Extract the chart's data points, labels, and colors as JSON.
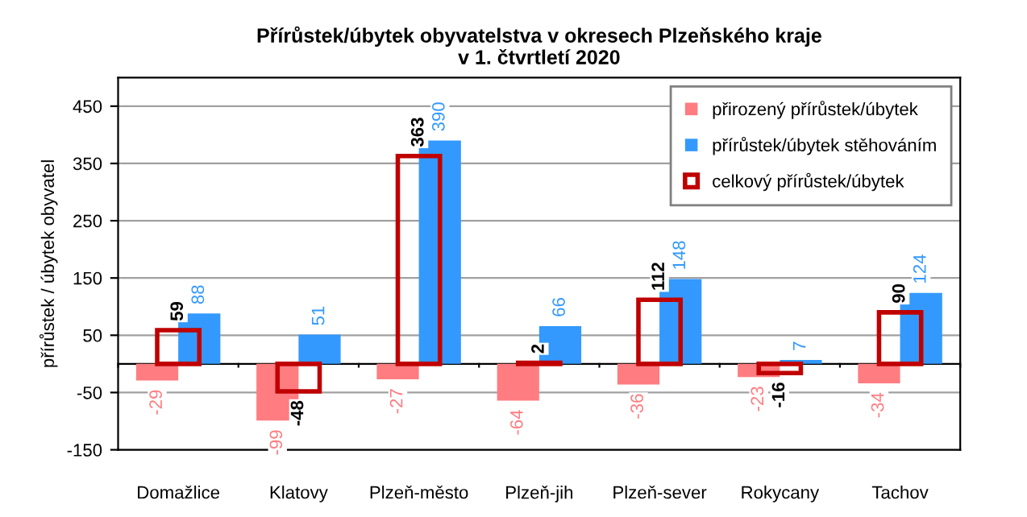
{
  "chart_data": {
    "type": "bar",
    "title": "Přírůstek/úbytek obyvatelstva v okresech Plzeňského kraje\nv 1. čtvrtletí 2020",
    "ylabel": "přírůstek / úbytek obyvatel",
    "categories": [
      "Domažlice",
      "Klatovy",
      "Plzeň-město",
      "Plzeň-jih",
      "Plzeň-sever",
      "Rokycany",
      "Tachov"
    ],
    "series": [
      {
        "name": "přirozený přírůstek/úbytek",
        "color": "#ff7c80",
        "values": [
          -29,
          -99,
          -27,
          -64,
          -36,
          -23,
          -34
        ]
      },
      {
        "name": "přírůstek/úbytek stěhováním",
        "color": "#3399ff",
        "values": [
          88,
          51,
          390,
          66,
          148,
          7,
          124
        ]
      },
      {
        "name": "celkový přírůstek/úbytek",
        "color": "#c00000",
        "type": "bar",
        "values": [
          59,
          -48,
          363,
          2,
          112,
          -16,
          90
        ]
      }
    ],
    "ylim": [
      -150,
      500
    ],
    "yticks": [
      -150,
      -50,
      50,
      150,
      250,
      350,
      450
    ],
    "grid": "y",
    "legend": "top right",
    "data_labels": true
  }
}
